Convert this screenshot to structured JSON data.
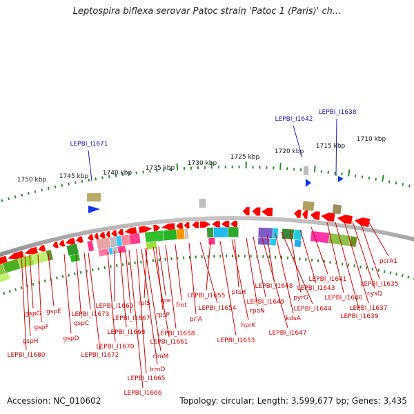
{
  "title": "Leptospira biflexa serovar Patoc strain 'Patoc 1 (Paris)' ch...",
  "footer": {
    "accession": "Accession: NC_010602",
    "summary": "Topology: circular; Length: 3,599,677 bp; Genes: 3,435"
  },
  "scale_labels": [
    "1710 kbp",
    "1715 kbp",
    "1720 kbp",
    "1725 kbp",
    "1730 kbp",
    "1735 kbp",
    "1740 kbp",
    "1745 kbp",
    "1750 kbp"
  ],
  "highlighted_genes": [
    "LEPBI_I1638",
    "LEPBI_I1642",
    "LEPBI_I1671"
  ],
  "gene_labels": [
    "pcrA1",
    "LEPBI_I1635",
    "cysQ",
    "LEPBI_I1637",
    "LEPBI_I1639",
    "LEPBI_I1640",
    "LEPBI_I1641",
    "LEPBI_I1643",
    "pyrG",
    "LEPBI_I1644",
    "LEPBI_I1648",
    "kdsA",
    "LEPBI_I1647",
    "LEPBI_I1649",
    "rpoN",
    "ptsH",
    "hprK",
    "LEPBI_I1653",
    "LEPBI_I1655",
    "LEPBI_I1654",
    "priA",
    "fmt",
    "LEPBI_I1658",
    "rpe",
    "rpsP",
    "LEPBI_I1661",
    "rplS",
    "rimM",
    "trmD",
    "LEPBI_I1665",
    "LEPBI_I1666",
    "LEPBI_I1667",
    "LEPBI_I1668",
    "LEPBI_I1669",
    "LEPBI_I1670",
    "LEPBI_I1672",
    "LEPBI_I1673",
    "gspC",
    "gspD",
    "gspE",
    "gspF",
    "gspG",
    "gspH",
    "LEPBI_I1680"
  ],
  "colors": {
    "gene_forward": "#ff0000",
    "gene_label": "#cc0000",
    "highlight_label": "#1a1aa6",
    "highlight_marker": "#1133ee",
    "backbone": "#8a8a8a",
    "tick": "#2e8b2e"
  }
}
